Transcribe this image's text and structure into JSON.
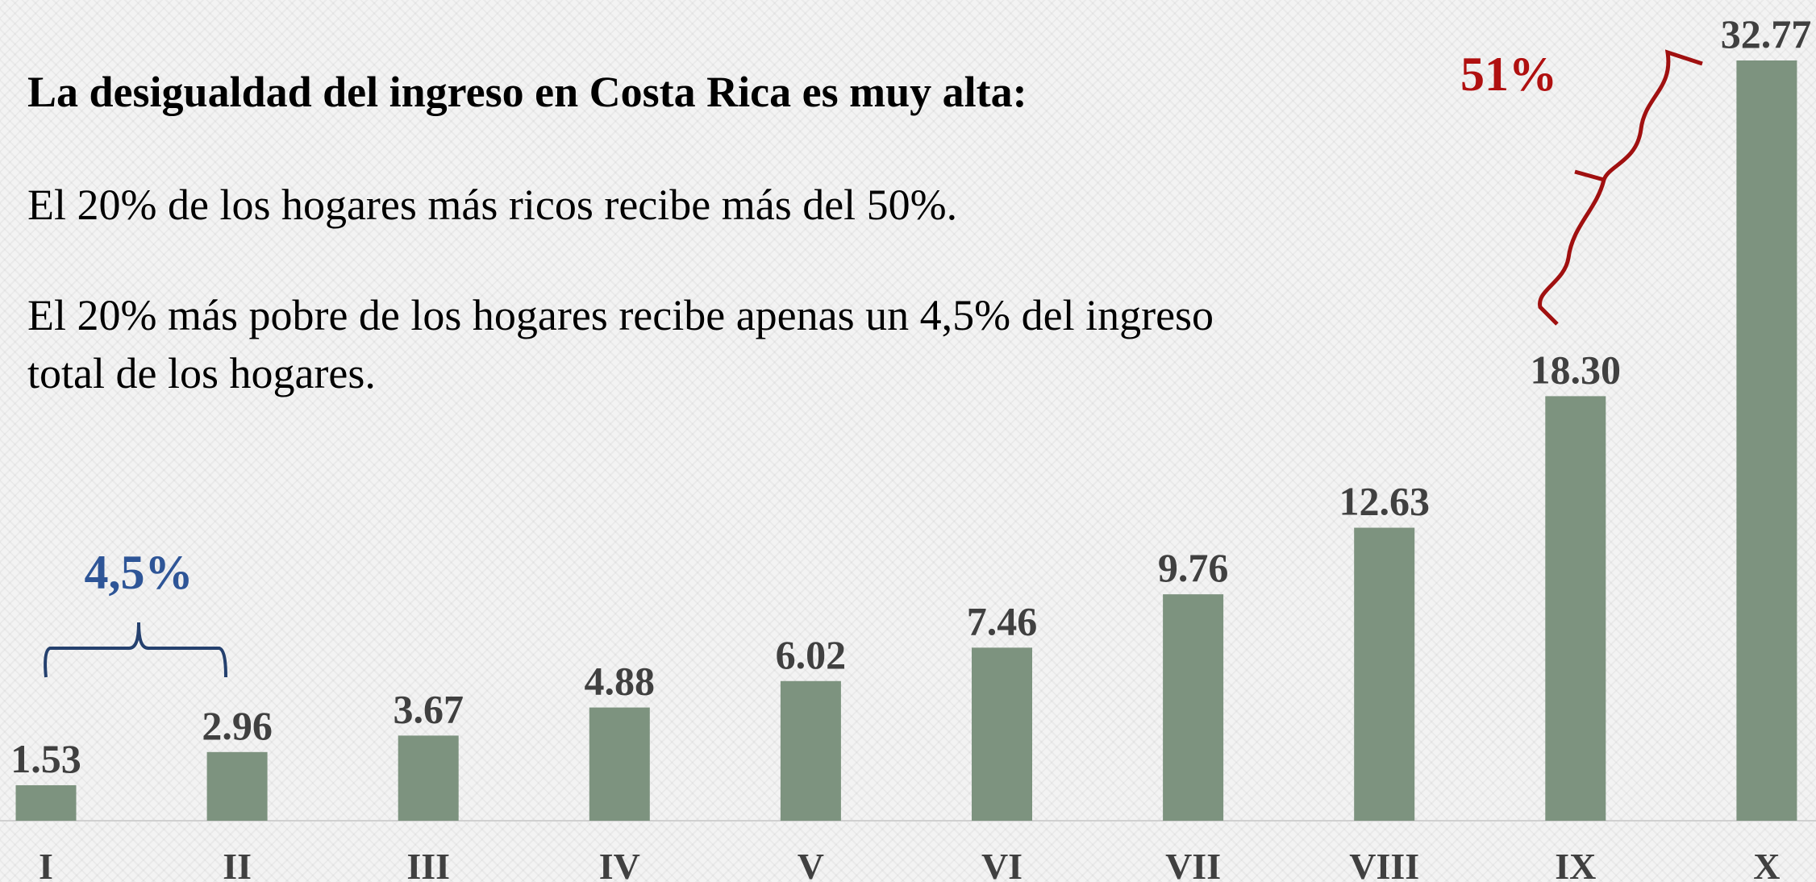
{
  "chart_data": {
    "type": "bar",
    "title": "La desigualdad del ingreso en Costa Rica es muy alta:",
    "texts": [
      "El 20% de los hogares más ricos recibe más del 50%.",
      "El 20% más pobre de los hogares recibe apenas un 4,5% del ingreso total de los hogares."
    ],
    "annotations": [
      "4,5%",
      "51%"
    ],
    "categories": [
      "I",
      "II",
      "III",
      "IV",
      "V",
      "VI",
      "VII",
      "VIII",
      "IX",
      "X"
    ],
    "values": [
      1.53,
      2.96,
      3.67,
      4.88,
      6.02,
      7.46,
      9.76,
      12.63,
      18.3,
      32.77
    ],
    "value_labels": [
      "1.53",
      "2.96",
      "3.67",
      "4.88",
      "6.02",
      "7.46",
      "9.76",
      "12.63",
      "18.30",
      "32.77"
    ],
    "color": "#7d937f"
  }
}
